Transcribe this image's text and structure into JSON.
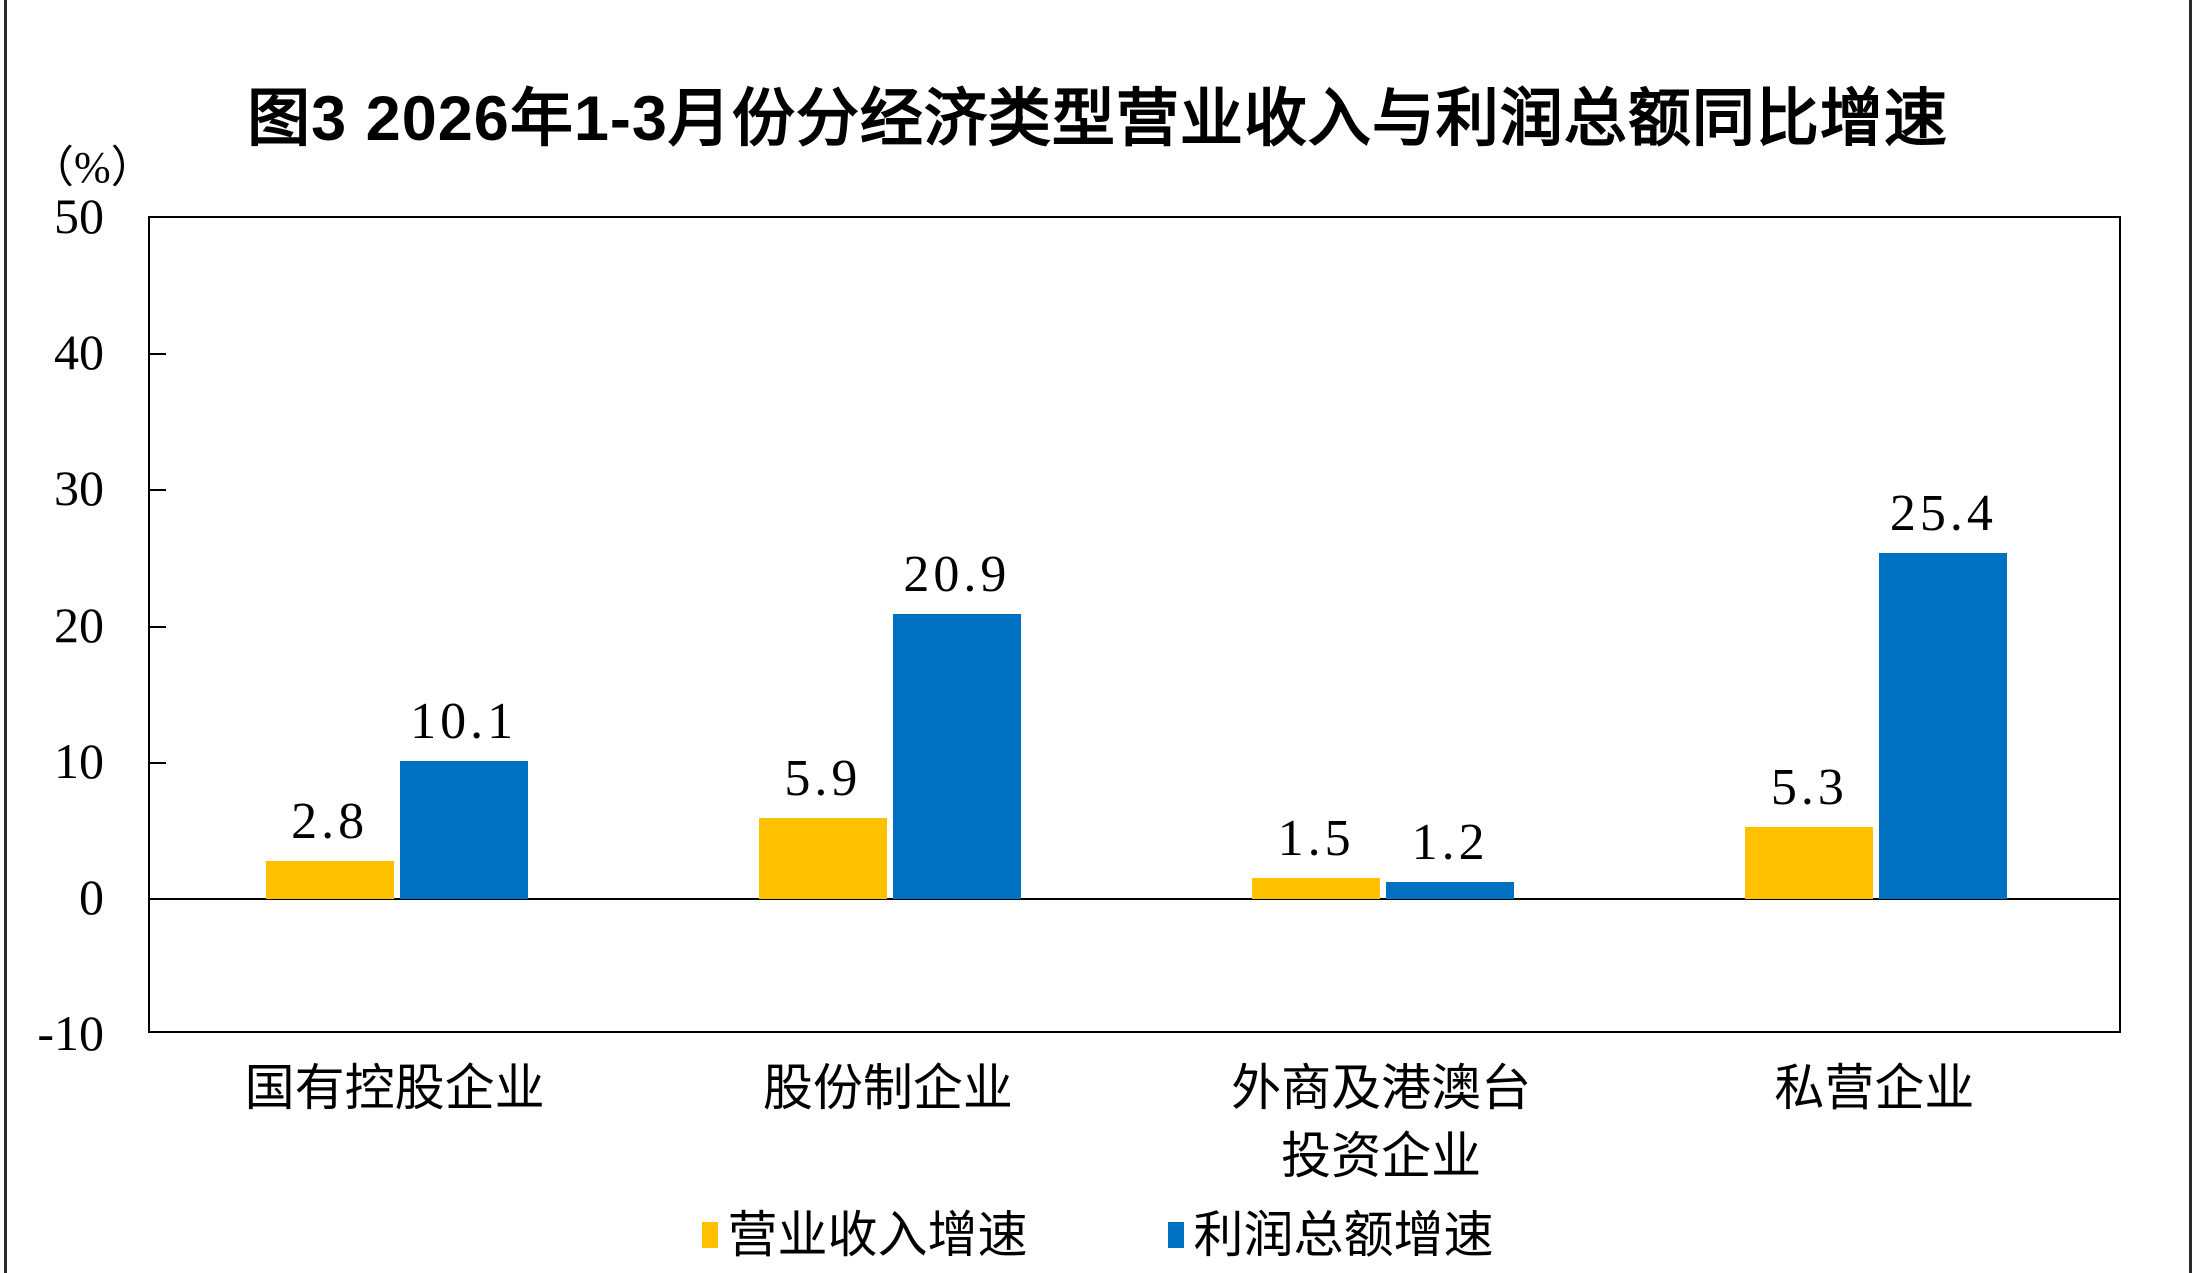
{
  "page": {
    "background": "#FFFFFF",
    "side_border_color": "#2B2B2B"
  },
  "title": "图3 2026年1-3月份分经济类型营业收入与利润总额同比增速",
  "y_axis": {
    "unit_label": "（%）",
    "ticks": [
      50,
      40,
      30,
      20,
      10,
      0,
      -10
    ],
    "max": 50,
    "min": -10,
    "step": 10
  },
  "chart_data": {
    "type": "bar",
    "title": "图3 2026年1-3月份分经济类型营业收入与利润总额同比增速",
    "categories": [
      "国有控股企业",
      "股份制企业",
      "外商及港澳台投资企业",
      "私营企业"
    ],
    "category_lines": [
      [
        "国有控股企业"
      ],
      [
        "股份制企业"
      ],
      [
        "外商及港澳台",
        "投资企业"
      ],
      [
        "私营企业"
      ]
    ],
    "series": [
      {
        "name": "营业收入增速",
        "color": "#FFC000",
        "values": [
          2.8,
          5.9,
          1.5,
          5.3
        ]
      },
      {
        "name": "利润总额增速",
        "color": "#0070C0",
        "values": [
          10.1,
          20.9,
          1.2,
          25.4
        ]
      }
    ],
    "value_labels": [
      [
        "2.8",
        "5.9",
        "1.5",
        "5.3"
      ],
      [
        "10.1",
        "20.9",
        "1.2",
        "25.4"
      ]
    ],
    "ylabel": "（%）",
    "ylim": [
      -10,
      50
    ],
    "grid": false,
    "legend_position": "bottom",
    "bar_colors": {
      "营业收入增速": "#FFC000",
      "利润总额增速": "#0070C0"
    }
  }
}
